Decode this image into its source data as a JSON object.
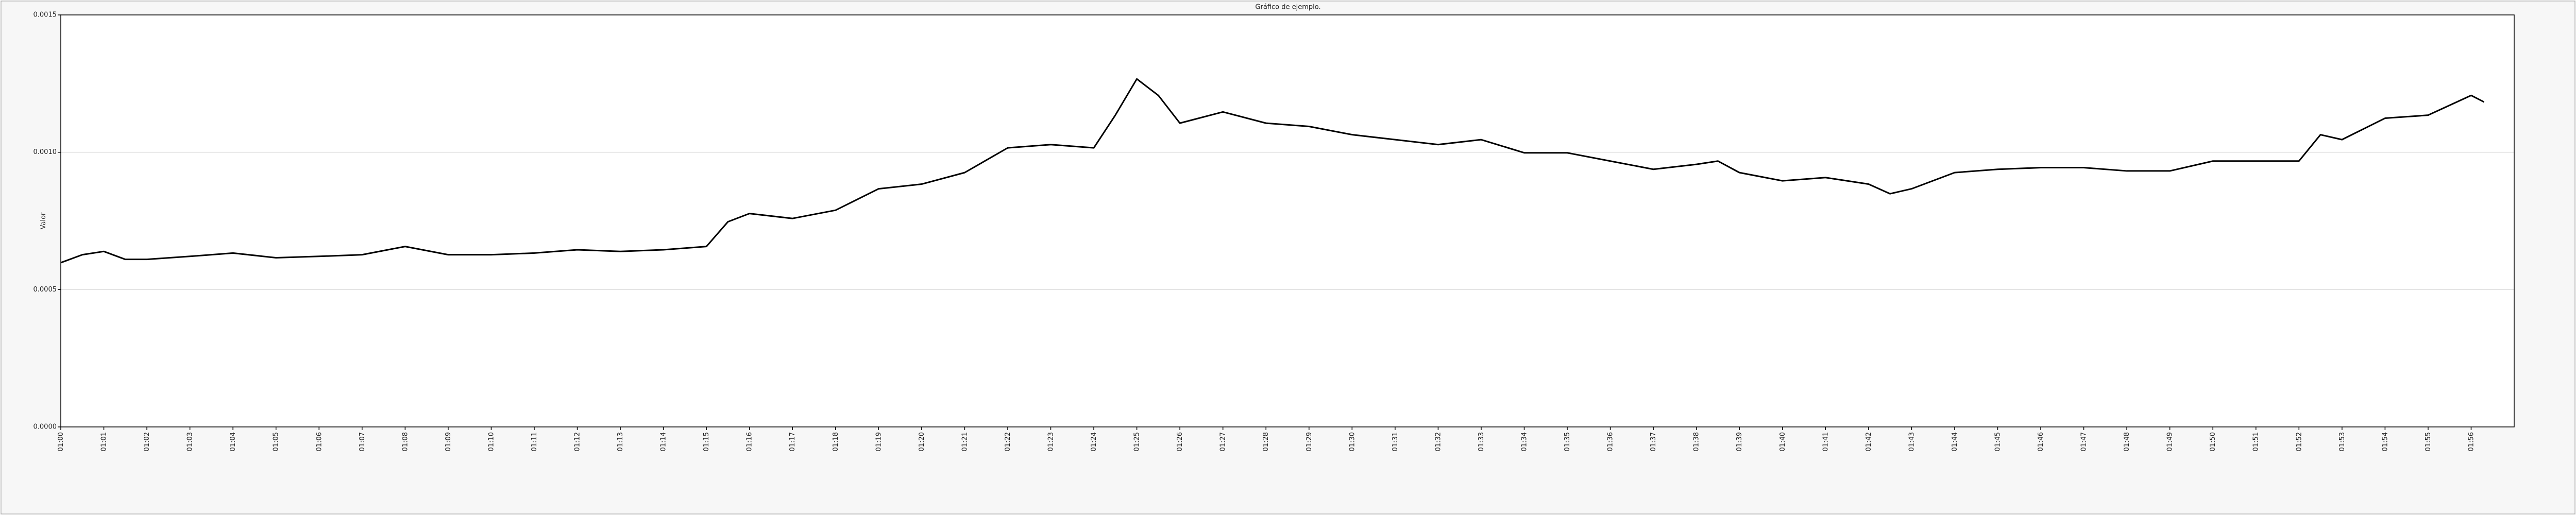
{
  "chart_data": {
    "type": "line",
    "title": "Gráfico de ejemplo.",
    "y_label": "Valor",
    "x": [
      0,
      0.5,
      1,
      1.5,
      2,
      3,
      4,
      5,
      6,
      7,
      8,
      9,
      10,
      11,
      12,
      13,
      14,
      15,
      15.5,
      16,
      17,
      18,
      19,
      20,
      21,
      22,
      23,
      24,
      24.5,
      25,
      25.5,
      26,
      27,
      28,
      29,
      30,
      31,
      32,
      33,
      34,
      35,
      36,
      37,
      38,
      38.5,
      39,
      40,
      41,
      42,
      42.5,
      43,
      44,
      45,
      46,
      47,
      48,
      49,
      50,
      51,
      52,
      52.5,
      53,
      54,
      55,
      56,
      56.3
    ],
    "series": [
      {
        "name": "Valor",
        "color": "#000000",
        "values": [
          0.000598,
          0.000627,
          0.000639,
          0.00061,
          0.00061,
          0.000621,
          0.000633,
          0.000616,
          0.000621,
          0.000627,
          0.000657,
          0.000627,
          0.000627,
          0.000633,
          0.000645,
          0.000639,
          0.000645,
          0.000657,
          0.000747,
          0.000777,
          0.000759,
          0.000789,
          0.000867,
          0.000884,
          0.000926,
          0.001016,
          0.001028,
          0.001016,
          0.001135,
          0.001267,
          0.001207,
          0.001106,
          0.001147,
          0.001106,
          0.001094,
          0.001064,
          0.001046,
          0.001028,
          0.001046,
          0.000998,
          0.000998,
          0.000968,
          0.000938,
          0.000956,
          0.000968,
          0.000926,
          0.000896,
          0.000908,
          0.000884,
          0.000849,
          0.000867,
          0.000926,
          0.000938,
          0.000944,
          0.000944,
          0.000932,
          0.000932,
          0.000968,
          0.000968,
          0.000968,
          0.001064,
          0.001046,
          0.001124,
          0.001135,
          0.001207,
          0.001183
        ]
      }
    ],
    "xlim": [
      0,
      57
    ],
    "xticks": [
      {
        "value": 0,
        "label": "01:00"
      },
      {
        "value": 1,
        "label": "01:01"
      },
      {
        "value": 2,
        "label": "01:02"
      },
      {
        "value": 3,
        "label": "01:03"
      },
      {
        "value": 4,
        "label": "01:04"
      },
      {
        "value": 5,
        "label": "01:05"
      },
      {
        "value": 6,
        "label": "01:06"
      },
      {
        "value": 7,
        "label": "01:07"
      },
      {
        "value": 8,
        "label": "01:08"
      },
      {
        "value": 9,
        "label": "01:09"
      },
      {
        "value": 10,
        "label": "01:10"
      },
      {
        "value": 11,
        "label": "01:11"
      },
      {
        "value": 12,
        "label": "01:12"
      },
      {
        "value": 13,
        "label": "01:13"
      },
      {
        "value": 14,
        "label": "01:14"
      },
      {
        "value": 15,
        "label": "01:15"
      },
      {
        "value": 16,
        "label": "01:16"
      },
      {
        "value": 17,
        "label": "01:17"
      },
      {
        "value": 18,
        "label": "01:18"
      },
      {
        "value": 19,
        "label": "01:19"
      },
      {
        "value": 20,
        "label": "01:20"
      },
      {
        "value": 21,
        "label": "01:21"
      },
      {
        "value": 22,
        "label": "01:22"
      },
      {
        "value": 23,
        "label": "01:23"
      },
      {
        "value": 24,
        "label": "01:24"
      },
      {
        "value": 25,
        "label": "01:25"
      },
      {
        "value": 26,
        "label": "01:26"
      },
      {
        "value": 27,
        "label": "01:27"
      },
      {
        "value": 28,
        "label": "01:28"
      },
      {
        "value": 29,
        "label": "01:29"
      },
      {
        "value": 30,
        "label": "01:30"
      },
      {
        "value": 31,
        "label": "01:31"
      },
      {
        "value": 32,
        "label": "01:32"
      },
      {
        "value": 33,
        "label": "01:33"
      },
      {
        "value": 34,
        "label": "01:34"
      },
      {
        "value": 35,
        "label": "01:35"
      },
      {
        "value": 36,
        "label": "01:36"
      },
      {
        "value": 37,
        "label": "01:37"
      },
      {
        "value": 38,
        "label": "01:38"
      },
      {
        "value": 39,
        "label": "01:39"
      },
      {
        "value": 40,
        "label": "01:40"
      },
      {
        "value": 41,
        "label": "01:41"
      },
      {
        "value": 42,
        "label": "01:42"
      },
      {
        "value": 43,
        "label": "01:43"
      },
      {
        "value": 44,
        "label": "01:44"
      },
      {
        "value": 45,
        "label": "01:45"
      },
      {
        "value": 46,
        "label": "01:46"
      },
      {
        "value": 47,
        "label": "01:47"
      },
      {
        "value": 48,
        "label": "01:48"
      },
      {
        "value": 49,
        "label": "01:49"
      },
      {
        "value": 50,
        "label": "01:50"
      },
      {
        "value": 51,
        "label": "01:51"
      },
      {
        "value": 52,
        "label": "01:52"
      },
      {
        "value": 53,
        "label": "01:53"
      },
      {
        "value": 54,
        "label": "01:54"
      },
      {
        "value": 55,
        "label": "01:55"
      },
      {
        "value": 56,
        "label": "01:56"
      }
    ],
    "ylim": [
      0,
      0.0015
    ],
    "yticks": [
      {
        "value": 0,
        "label": "0.0000"
      },
      {
        "value": 0.0005,
        "label": "0.0005"
      },
      {
        "value": 0.001,
        "label": "0.0010"
      },
      {
        "value": 0.0015,
        "label": "0.0015"
      }
    ],
    "grid": true
  }
}
